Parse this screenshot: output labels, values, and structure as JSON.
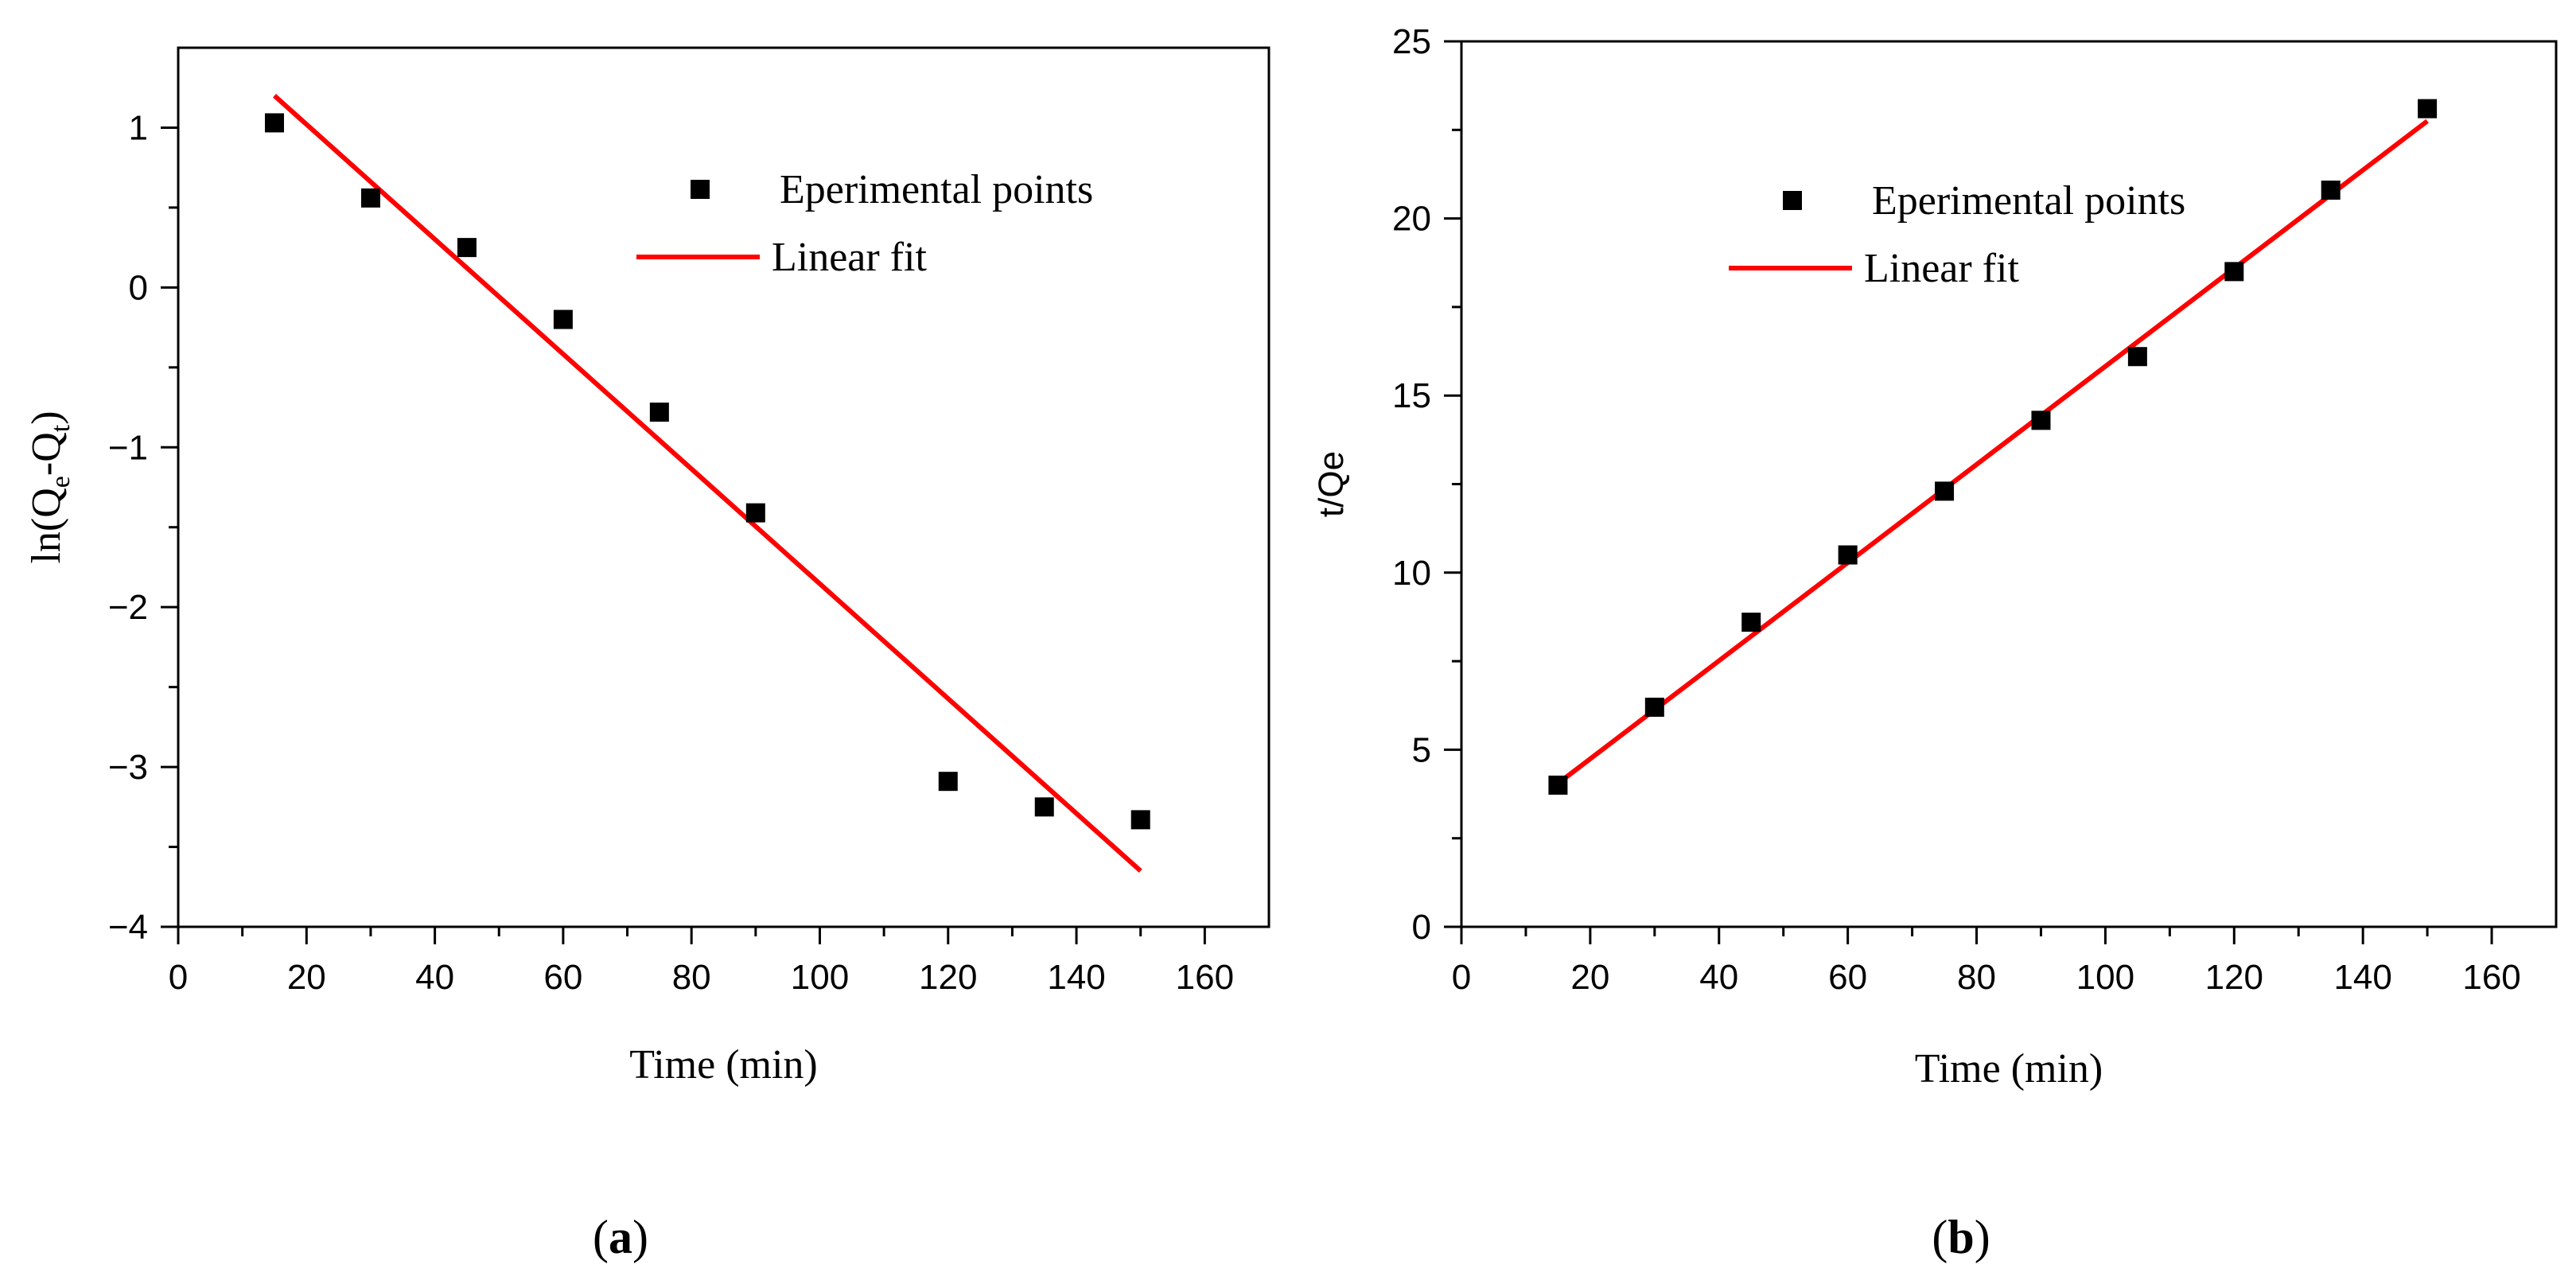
{
  "chart_data": [
    {
      "type": "scatter",
      "panel": "(a)",
      "panel_letter": "a",
      "xlabel": "Time (min)",
      "ylabel": "ln(Q",
      "ylabel_sub1": "e",
      "ylabel_mid": "-Q",
      "ylabel_sub2": "t",
      "ylabel_end": ")",
      "xlim": [
        0,
        170
      ],
      "ylim": [
        -4,
        1.5
      ],
      "xticks": [
        0,
        20,
        40,
        60,
        80,
        100,
        120,
        140,
        160
      ],
      "yticks": [
        -4,
        -3,
        -2,
        -1,
        0,
        1
      ],
      "series": [
        {
          "name": "Eperimental points",
          "kind": "points",
          "color": "#000000",
          "x": [
            15,
            30,
            45,
            60,
            75,
            90,
            120,
            135,
            150
          ],
          "y": [
            1.03,
            0.56,
            0.25,
            -0.2,
            -0.78,
            -1.41,
            -3.09,
            -3.25,
            -3.33
          ]
        },
        {
          "name": "Linear fit",
          "kind": "line",
          "color": "#ff0000",
          "x": [
            15,
            150
          ],
          "y": [
            1.2,
            -3.65
          ]
        }
      ],
      "legend": "top-right"
    },
    {
      "type": "scatter",
      "panel": "(b)",
      "panel_letter": "b",
      "xlabel": "Time (min)",
      "ylabel": "t/Qe",
      "xlim": [
        0,
        170
      ],
      "ylim": [
        0,
        25
      ],
      "xticks": [
        0,
        20,
        40,
        60,
        80,
        100,
        120,
        140,
        160
      ],
      "yticks": [
        0,
        5,
        10,
        15,
        20,
        25
      ],
      "series": [
        {
          "name": "Eperimental points",
          "kind": "points",
          "color": "#000000",
          "x": [
            15,
            30,
            45,
            60,
            75,
            90,
            105,
            120,
            135,
            150
          ],
          "y": [
            4.0,
            6.2,
            8.6,
            10.5,
            12.3,
            14.3,
            16.1,
            18.5,
            20.8,
            23.1
          ]
        },
        {
          "name": "Linear fit",
          "kind": "line",
          "color": "#ff0000",
          "x": [
            15,
            150
          ],
          "y": [
            4.05,
            22.75
          ]
        }
      ],
      "legend": "top-left"
    }
  ]
}
